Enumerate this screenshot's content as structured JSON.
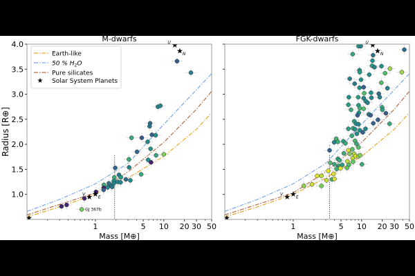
{
  "chart_data": {
    "type": "scatter",
    "ylabel": "Radius [R⊕]",
    "xlabel": "Mass [M⊕]",
    "xscale": "log",
    "xlim": [
      0.1,
      50
    ],
    "ylim": [
      0.5,
      4.0
    ],
    "xticks": [
      1,
      5,
      10,
      20,
      30,
      50
    ],
    "xtick_labels": [
      "1",
      "5",
      "10",
      "20",
      "30",
      "50"
    ],
    "yticks": [
      1.0,
      1.5,
      2.0,
      2.5,
      3.0,
      3.5,
      4.0
    ],
    "ytick_labels": [
      "1.0",
      "1.5",
      "2.0",
      "2.5",
      "3.0",
      "3.5",
      "4.0"
    ],
    "legend": {
      "placement": "top-left",
      "entries": [
        "Earth-like",
        "50 % H2O",
        "Pure silicates",
        "Solar System Planets"
      ],
      "h2o_prefix": "50 % H",
      "h2o_sub": "2",
      "h2o_suffix": "O"
    },
    "curves": [
      {
        "name": "Earth-like",
        "color": "#e8a82a",
        "mass": [
          0.1,
          0.3,
          1,
          3,
          10,
          30,
          50
        ],
        "radius": [
          0.55,
          0.75,
          1.0,
          1.33,
          1.76,
          2.3,
          2.63
        ]
      },
      {
        "name": "50 % H2O",
        "color": "#7aa7ea",
        "mass": [
          0.1,
          0.3,
          1,
          3,
          10,
          30,
          50
        ],
        "radius": [
          0.66,
          0.9,
          1.21,
          1.62,
          2.4,
          3.09,
          3.41
        ]
      },
      {
        "name": "Pure silicates",
        "color": "#b86a48",
        "mass": [
          0.1,
          0.3,
          1,
          3,
          10,
          30,
          50
        ],
        "radius": [
          0.59,
          0.8,
          1.03,
          1.45,
          2.04,
          2.7,
          3.06
        ]
      }
    ],
    "solar_system": [
      {
        "label": "",
        "mass": 0.107,
        "radius": 0.53
      },
      {
        "label": "V",
        "mass": 0.815,
        "radius": 0.95
      },
      {
        "label": "E",
        "mass": 1.0,
        "radius": 1.0
      },
      {
        "label": "U",
        "mass": 14.5,
        "radius": 3.98
      },
      {
        "label": "N",
        "mass": 17.1,
        "radius": 3.86
      }
    ],
    "panels": [
      {
        "title": "M-dwarfs",
        "threshold_mass": 1.91,
        "threshold_top_radius": 1.78,
        "annotation": {
          "text": "GJ 367b",
          "mass": 0.63,
          "radius": 0.7
        },
        "points": [
          [
            15.6,
            3.66,
            0.28
          ],
          [
            24.9,
            3.43,
            0.42
          ],
          [
            8.2,
            2.75,
            0.45
          ],
          [
            8.9,
            2.77,
            0.45
          ],
          [
            6.3,
            2.42,
            0.35
          ],
          [
            6.2,
            2.36,
            0.38
          ],
          [
            4.76,
            2.13,
            0.28
          ],
          [
            3.37,
            2.13,
            0.6
          ],
          [
            6.7,
            2.19,
            0.3
          ],
          [
            7.6,
            2.18,
            0.5
          ],
          [
            5.8,
            2.05,
            0.45
          ],
          [
            6.4,
            1.91,
            0.5
          ],
          [
            4.06,
            1.85,
            0.35
          ],
          [
            7.7,
            1.78,
            0.58
          ],
          [
            10,
            1.8,
            0.8
          ],
          [
            3.09,
            1.7,
            0.62
          ],
          [
            5.9,
            1.69,
            0.5
          ],
          [
            6.5,
            1.64,
            0.1
          ],
          [
            3.11,
            1.54,
            0.45
          ],
          [
            1.95,
            1.53,
            0.33
          ],
          [
            4.66,
            1.4,
            0.6
          ],
          [
            2.21,
            1.39,
            0.4
          ],
          [
            2.35,
            1.34,
            0.55
          ],
          [
            1.89,
            1.34,
            0.62
          ],
          [
            2.79,
            1.3,
            0.35
          ],
          [
            3.24,
            1.28,
            0.48
          ],
          [
            2.13,
            1.25,
            0.45
          ],
          [
            2.33,
            1.24,
            0.45
          ],
          [
            1.86,
            1.27,
            0.5
          ],
          [
            1.86,
            1.22,
            0.45
          ],
          [
            1.57,
            1.22,
            0.38
          ],
          [
            1.7,
            1.17,
            0.42
          ],
          [
            1.51,
            1.14,
            0.45
          ],
          [
            1.76,
            1.15,
            0.4
          ],
          [
            1.33,
            1.19,
            0.62
          ],
          [
            1.32,
            1.13,
            0.1
          ],
          [
            1.32,
            1.09,
            0.3
          ],
          [
            1.02,
            1.05,
            0.1
          ],
          [
            0.69,
            0.92,
            0.12
          ],
          [
            0.38,
            0.79,
            0.12
          ],
          [
            0.32,
            0.76,
            0.12
          ],
          [
            0.63,
            0.7,
            0.78
          ]
        ]
      },
      {
        "title": "FGK-dwarfs",
        "threshold_mass": 3.4,
        "threshold_top_radius": 1.99,
        "points": [
          [
            9.0,
            3.96,
            0.55
          ],
          [
            9.7,
            3.96,
            0.45
          ],
          [
            7.4,
            3.8,
            0.6
          ],
          [
            42,
            3.89,
            0.35
          ],
          [
            14.7,
            3.78,
            0.4
          ],
          [
            14.4,
            3.67,
            0.5
          ],
          [
            14.2,
            3.57,
            0.55
          ],
          [
            15.4,
            3.54,
            0.45
          ],
          [
            19.5,
            3.56,
            0.5
          ],
          [
            25.9,
            3.51,
            0.85
          ],
          [
            38.7,
            3.44,
            0.85
          ],
          [
            22,
            3.42,
            0.7
          ],
          [
            9.3,
            3.48,
            0.5
          ],
          [
            9.4,
            3.44,
            0.55
          ],
          [
            9.8,
            3.29,
            0.5
          ],
          [
            12.9,
            3.39,
            0.5
          ],
          [
            6.7,
            3.31,
            0.45
          ],
          [
            7.9,
            3.21,
            0.4
          ],
          [
            9.3,
            3.13,
            0.5
          ],
          [
            10.7,
            3.14,
            0.3
          ],
          [
            19.4,
            3.23,
            0.7
          ],
          [
            23.8,
            3.12,
            0.45
          ],
          [
            17.8,
            3.01,
            0.35
          ],
          [
            6.5,
            2.94,
            0.5
          ],
          [
            8.9,
            2.94,
            0.55
          ],
          [
            10.9,
            3.02,
            0.7
          ],
          [
            10.7,
            2.92,
            0.45
          ],
          [
            11.5,
            2.86,
            0.5
          ],
          [
            12.2,
            2.83,
            0.45
          ],
          [
            13.7,
            3.03,
            0.5
          ],
          [
            13.9,
            2.93,
            0.45
          ],
          [
            18.4,
            2.94,
            0.45
          ],
          [
            7.0,
            2.69,
            0.62
          ],
          [
            6.4,
            2.79,
            0.55
          ],
          [
            9.0,
            2.78,
            0.55
          ],
          [
            9.4,
            2.72,
            0.65
          ],
          [
            10.7,
            2.71,
            0.7
          ],
          [
            9.1,
            2.63,
            0.5
          ],
          [
            8.7,
            2.58,
            0.3
          ],
          [
            12.7,
            2.6,
            0.45
          ],
          [
            13.5,
            2.58,
            0.3
          ],
          [
            14.8,
            2.42,
            0.32
          ],
          [
            17.3,
            2.49,
            0.3
          ],
          [
            19.9,
            2.74,
            0.6
          ],
          [
            20.1,
            2.69,
            0.55
          ],
          [
            22.6,
            2.62,
            0.3
          ],
          [
            25.6,
            2.41,
            0.6
          ],
          [
            7.8,
            2.46,
            0.55
          ],
          [
            8.3,
            2.41,
            0.5
          ],
          [
            9.0,
            2.4,
            0.45
          ],
          [
            6.4,
            2.31,
            0.55
          ],
          [
            7.5,
            2.32,
            0.6
          ],
          [
            8.0,
            2.3,
            0.5
          ],
          [
            9.4,
            2.28,
            0.5
          ],
          [
            10.4,
            2.24,
            0.3
          ],
          [
            11.4,
            2.31,
            0.45
          ],
          [
            7.2,
            2.17,
            0.6
          ],
          [
            8.5,
            2.21,
            0.5
          ],
          [
            4.25,
            2.11,
            0.65
          ],
          [
            3.97,
            2.04,
            0.45
          ],
          [
            4.5,
            2.05,
            0.62
          ],
          [
            5.4,
            2.06,
            0.55
          ],
          [
            5.8,
            2.02,
            0.6
          ],
          [
            8.0,
            2.07,
            0.68
          ],
          [
            8.4,
            2.01,
            0.6
          ],
          [
            9.0,
            1.94,
            0.7
          ],
          [
            7.3,
            1.9,
            0.72
          ],
          [
            6.4,
            1.88,
            0.95
          ],
          [
            3.4,
            1.88,
            0.32
          ],
          [
            5.5,
            1.82,
            0.62
          ],
          [
            6.7,
            1.81,
            0.8
          ],
          [
            7.8,
            1.81,
            0.88
          ],
          [
            8.1,
            1.76,
            0.95
          ],
          [
            9.0,
            1.76,
            0.85
          ],
          [
            9.5,
            1.78,
            0.8
          ],
          [
            4.5,
            1.71,
            0.55
          ],
          [
            4.76,
            1.68,
            0.6
          ],
          [
            7.4,
            1.72,
            0.9
          ],
          [
            7.5,
            1.65,
            0.75
          ],
          [
            6.2,
            1.66,
            0.9
          ],
          [
            6.5,
            1.59,
            0.7
          ],
          [
            10.1,
            1.6,
            0.62
          ],
          [
            3.48,
            1.63,
            0.7
          ],
          [
            4.0,
            1.6,
            0.6
          ],
          [
            4.6,
            1.57,
            0.62
          ],
          [
            5.2,
            1.59,
            0.55
          ],
          [
            4.5,
            1.53,
            0.55
          ],
          [
            4.3,
            1.51,
            0.62
          ],
          [
            4.9,
            1.52,
            0.95
          ],
          [
            6.1,
            1.53,
            0.75
          ],
          [
            3.88,
            1.41,
            0.95
          ],
          [
            3.25,
            1.47,
            0.95
          ],
          [
            3.7,
            1.3,
            0.65
          ],
          [
            4.0,
            1.31,
            0.95
          ],
          [
            3.07,
            1.28,
            0.92
          ],
          [
            2.24,
            1.37,
            0.95
          ],
          [
            2.58,
            1.37,
            0.9
          ],
          [
            2.58,
            1.17,
            0.78
          ],
          [
            1.88,
            1.2,
            0.92
          ],
          [
            1.43,
            1.17,
            0.82
          ]
        ]
      }
    ]
  }
}
